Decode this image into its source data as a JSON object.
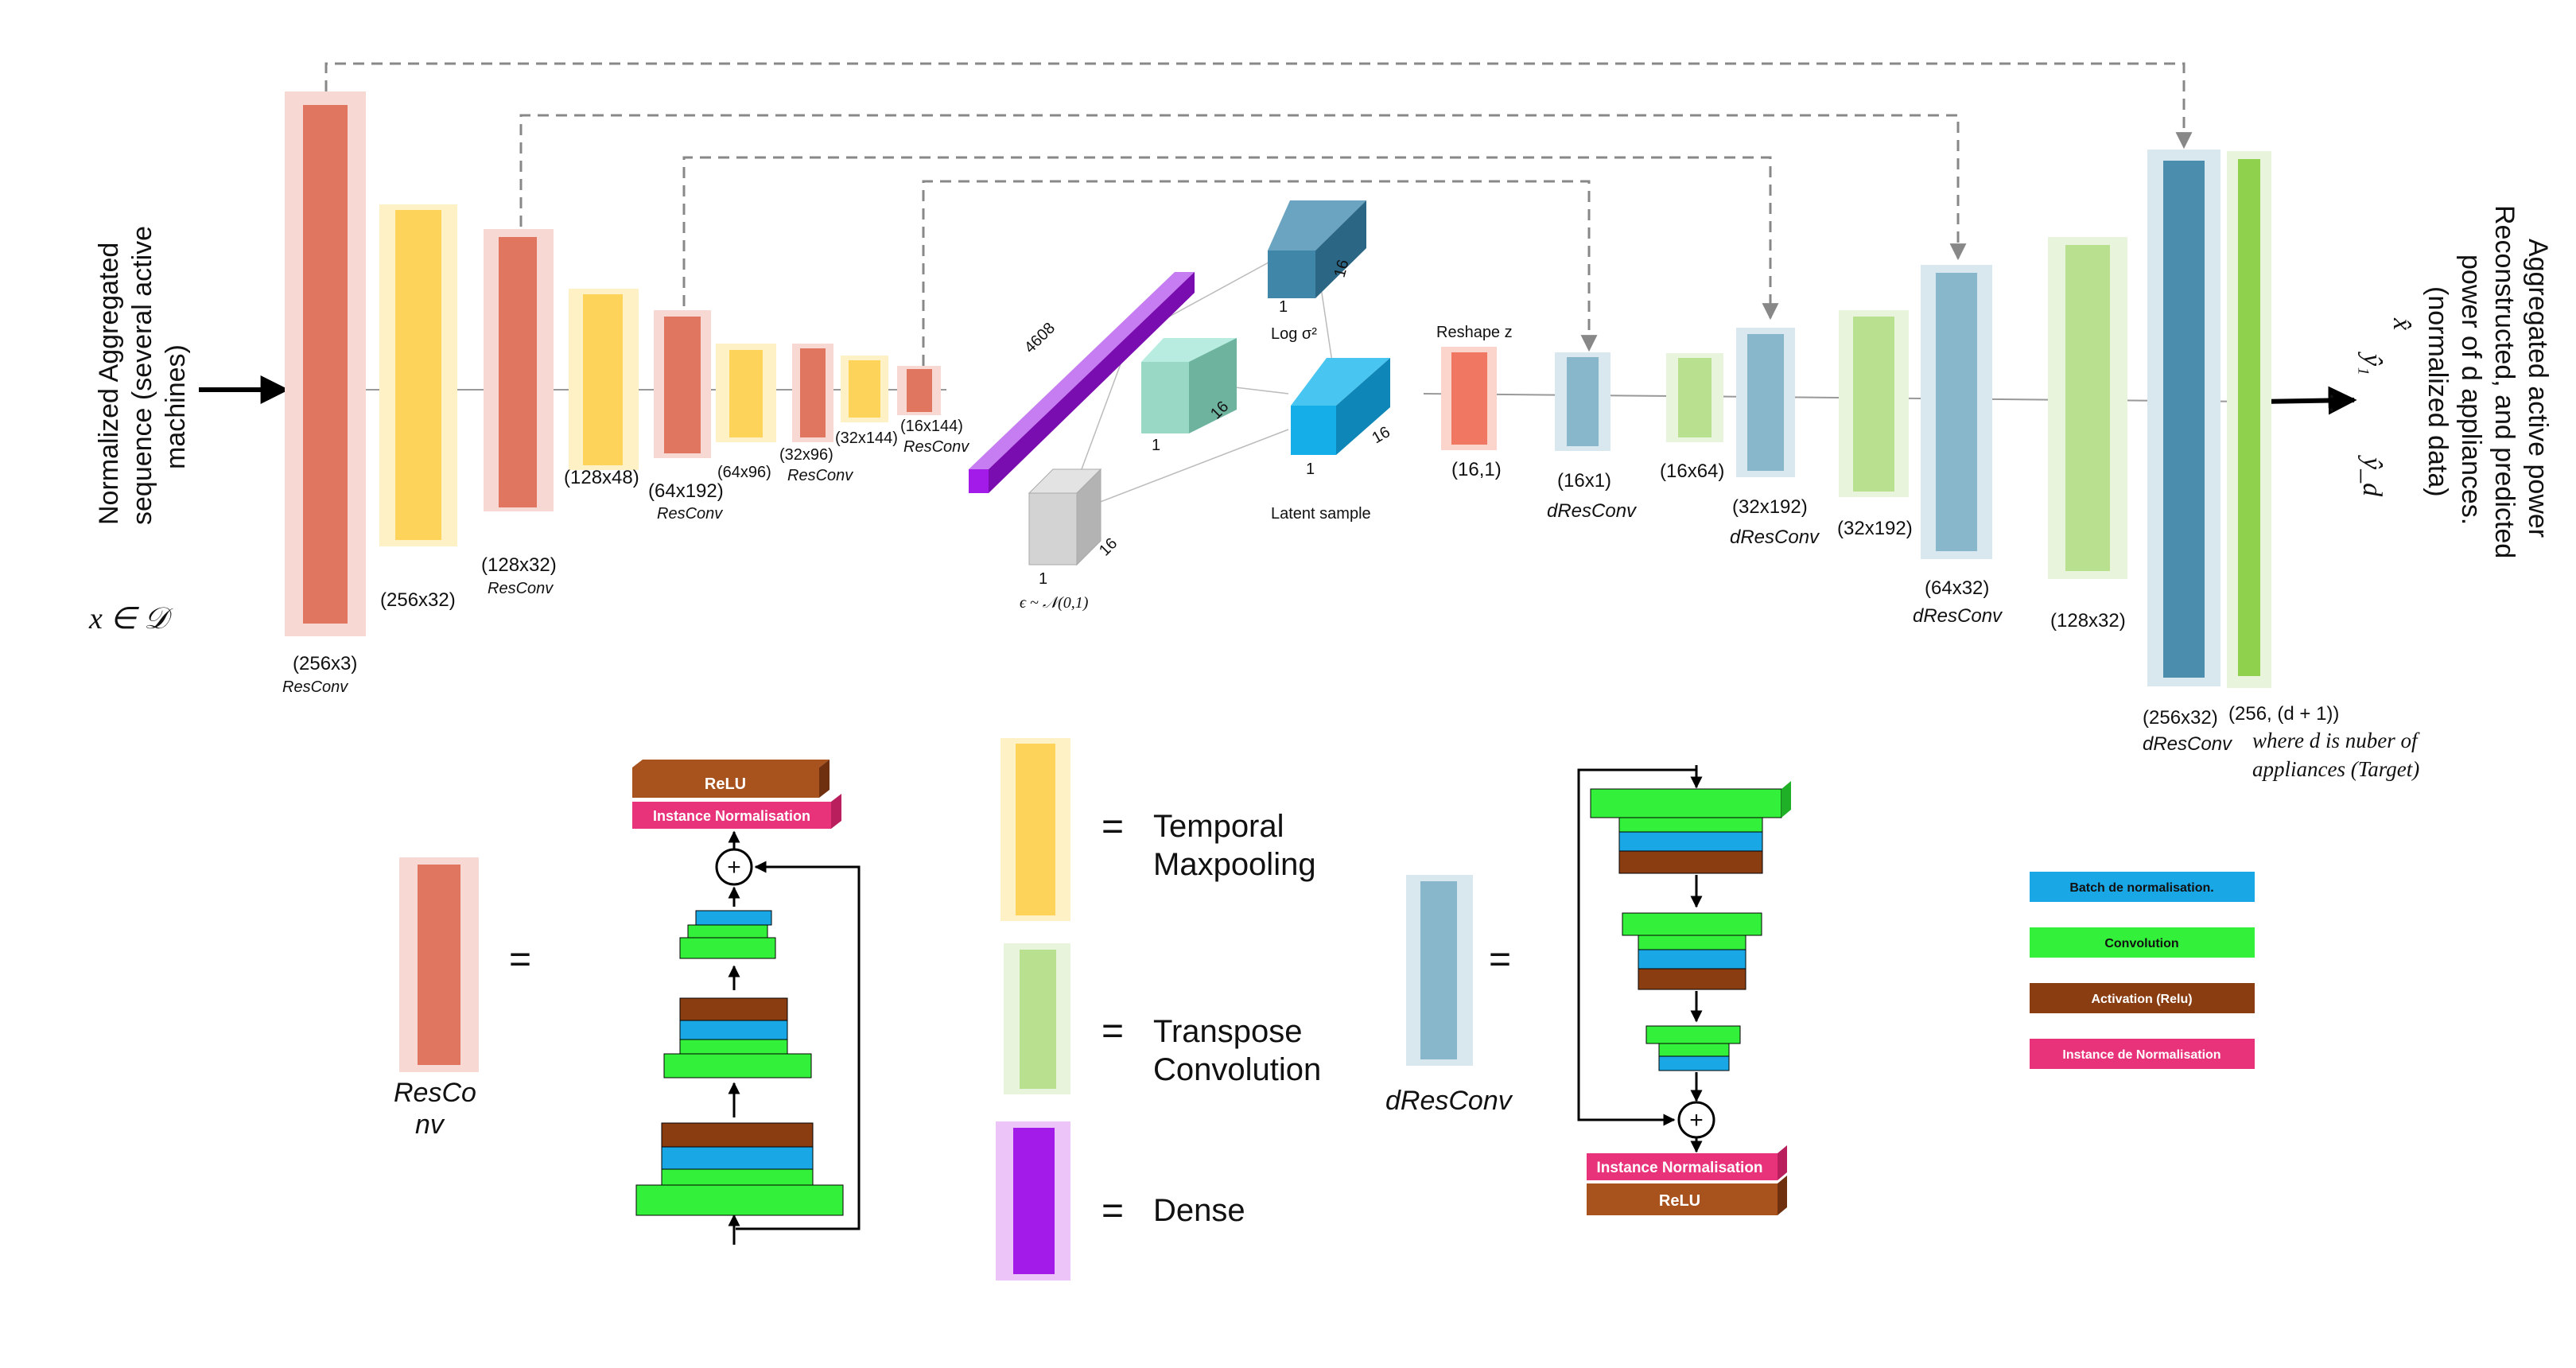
{
  "input": {
    "title_lines": [
      "Normalized Aggregated",
      "sequence (several active",
      "machines)"
    ],
    "math": "x ∈ 𝒟"
  },
  "output": {
    "title_lines": [
      "Aggregated active power",
      "Reconstructed, and predicted",
      "power of d appliances.",
      "(normalized data)"
    ],
    "symbols": [
      "x̂",
      "ŷ₁",
      ".  .",
      "ŷ_d"
    ]
  },
  "encoder": [
    {
      "size": "(256x3)",
      "kind": "ResConv"
    },
    {
      "size": "(256x32)",
      "kind": ""
    },
    {
      "size": "(128x32)",
      "kind": "ResConv"
    },
    {
      "size": "(128x48)",
      "kind": ""
    },
    {
      "size": "(64x192)",
      "kind": "ResConv"
    },
    {
      "size": "(64x96)",
      "kind": ""
    },
    {
      "size": "(32x96)",
      "kind": "ResConv"
    },
    {
      "size": "(32x144)",
      "kind": ""
    },
    {
      "size": "(16x144)",
      "kind": "ResConv"
    }
  ],
  "latent": {
    "dense_size": "4608",
    "logvar_label": "Log σ²",
    "one": "1",
    "sixteen": "16",
    "epsilon_label": "ϵ ~ 𝒩(0,1)",
    "latent_label": "Latent sample",
    "reshape_label": "Reshape z",
    "reshape_size": "(16,1)"
  },
  "decoder": [
    {
      "size": "(16x1)",
      "kind": "dResConv"
    },
    {
      "size": "(16x64)",
      "kind": ""
    },
    {
      "size": "(32x192)",
      "kind": "dResConv"
    },
    {
      "size": "(32x192)",
      "kind": ""
    },
    {
      "size": "(64x32)",
      "kind": "dResConv"
    },
    {
      "size": "(128x32)",
      "kind": ""
    },
    {
      "size": "(256x32)",
      "kind": "dResConv"
    },
    {
      "size": "(256, (d + 1))",
      "kind": ""
    }
  ],
  "target_note": [
    "where d is nuber of",
    "appliances (Target)"
  ],
  "legend": {
    "equals": "=",
    "resconv_label_lines": [
      "ResCo",
      "nv"
    ],
    "dresconv_label": "dResConv",
    "relu": "ReLU",
    "instance_norm": "Instance Normalisation",
    "plus": "+",
    "temporal_maxpooling": [
      "Temporal",
      "Maxpooling"
    ],
    "transpose_convolution": [
      "Transpose",
      "Convolution"
    ],
    "dense": "Dense",
    "color_key": [
      {
        "label": "Batch de normalisation.",
        "color": "#1aa7e6"
      },
      {
        "label": "Convolution",
        "color": "#33f03a"
      },
      {
        "label": "Activation (Relu)",
        "color": "#8b3d12"
      },
      {
        "label": "Instance de Normalisation",
        "color": "#e8337a"
      }
    ]
  },
  "colors": {
    "resconv": "#e07560",
    "maxpool": "#fdd35a",
    "dense": "#a31be8",
    "dresconv": "#4a8dac",
    "transpose": "#b8e08e",
    "latent": "#16aee8",
    "mean": "#98d8c4",
    "epsilon": "#d3d3d3"
  }
}
